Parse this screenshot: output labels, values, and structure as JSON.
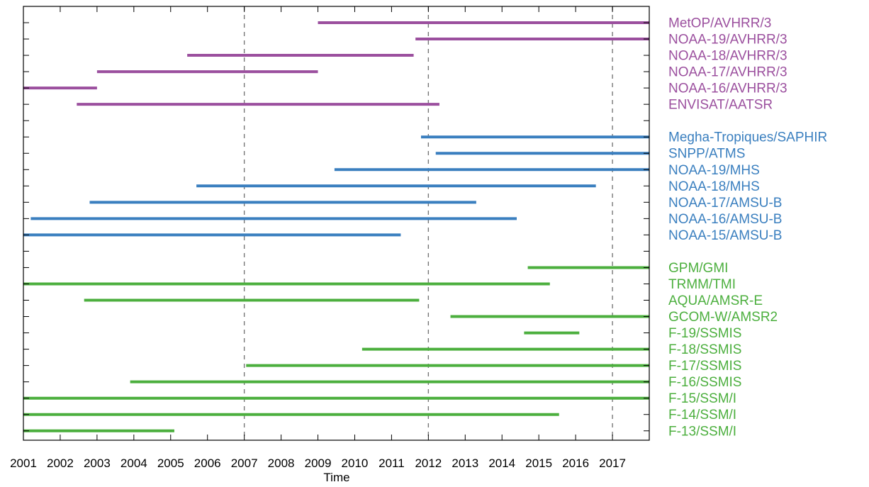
{
  "chart_data": {
    "type": "bar",
    "subtype": "timeline",
    "title": "",
    "xlabel": "Time",
    "ylabel": "",
    "xlim": [
      2001,
      2018
    ],
    "x_ticks": [
      "2001",
      "2002",
      "2003",
      "2004",
      "2005",
      "2006",
      "2007",
      "2008",
      "2009",
      "2010",
      "2011",
      "2012",
      "2013",
      "2014",
      "2015",
      "2016",
      "2017"
    ],
    "reference_lines_x": [
      2007,
      2012,
      2017
    ],
    "grid": false,
    "legend": "labels at right of each bar",
    "groups": [
      {
        "color": "#9b4f9e",
        "items": [
          {
            "label": "MetOP/AVHRR/3",
            "start": 2009.0,
            "end": 2018.0
          },
          {
            "label": "NOAA-19/AVHRR/3",
            "start": 2011.65,
            "end": 2018.0
          },
          {
            "label": "NOAA-18/AVHRR/3",
            "start": 2005.45,
            "end": 2011.6
          },
          {
            "label": "NOAA-17/AVHRR/3",
            "start": 2003.0,
            "end": 2009.0
          },
          {
            "label": "NOAA-16/AVHRR/3",
            "start": 2001.0,
            "end": 2003.0
          },
          {
            "label": "ENVISAT/AATSR",
            "start": 2002.45,
            "end": 2012.3
          }
        ]
      },
      {
        "color": "#3a7fbf",
        "items": [
          {
            "label": "Megha-Tropiques/SAPHIR",
            "start": 2011.8,
            "end": 2018.0
          },
          {
            "label": "SNPP/ATMS",
            "start": 2012.2,
            "end": 2018.0
          },
          {
            "label": "NOAA-19/MHS",
            "start": 2009.45,
            "end": 2018.0
          },
          {
            "label": "NOAA-18/MHS",
            "start": 2005.7,
            "end": 2016.55
          },
          {
            "label": "NOAA-17/AMSU-B",
            "start": 2002.8,
            "end": 2013.3
          },
          {
            "label": "NOAA-16/AMSU-B",
            "start": 2001.2,
            "end": 2014.4
          },
          {
            "label": "NOAA-15/AMSU-B",
            "start": 2001.0,
            "end": 2011.25
          }
        ]
      },
      {
        "color": "#4caf3e",
        "items": [
          {
            "label": "GPM/GMI",
            "start": 2014.7,
            "end": 2018.0
          },
          {
            "label": "TRMM/TMI",
            "start": 2001.0,
            "end": 2015.3
          },
          {
            "label": "AQUA/AMSR-E",
            "start": 2002.65,
            "end": 2011.75
          },
          {
            "label": "GCOM-W/AMSR2",
            "start": 2012.6,
            "end": 2018.0
          },
          {
            "label": "F-19/SSMIS",
            "start": 2014.6,
            "end": 2016.1
          },
          {
            "label": "F-18/SSMIS",
            "start": 2010.2,
            "end": 2018.0
          },
          {
            "label": "F-17/SSMIS",
            "start": 2007.05,
            "end": 2018.0
          },
          {
            "label": "F-16/SSMIS",
            "start": 2003.9,
            "end": 2018.0
          },
          {
            "label": "F-15/SSM/I",
            "start": 2001.0,
            "end": 2018.0
          },
          {
            "label": "F-14/SSM/I",
            "start": 2001.0,
            "end": 2015.55
          },
          {
            "label": "F-13/SSM/I",
            "start": 2001.0,
            "end": 2005.1
          }
        ]
      }
    ]
  }
}
